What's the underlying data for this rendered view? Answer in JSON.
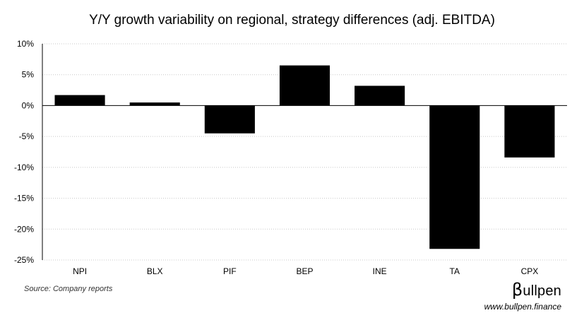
{
  "chart_data": {
    "type": "bar",
    "title": "Y/Y growth variability on regional, strategy differences (adj. EBITDA)",
    "categories": [
      "NPI",
      "BLX",
      "PIF",
      "BEP",
      "INE",
      "TA",
      "CPX"
    ],
    "values": [
      1.7,
      0.5,
      -4.5,
      6.5,
      3.2,
      -23.2,
      -8.4
    ],
    "value_unit": "%",
    "ylim": [
      -25,
      10
    ],
    "yticks": [
      10,
      5,
      0,
      -5,
      -10,
      -15,
      -20,
      -25
    ],
    "ytick_labels": [
      "10%",
      "5%",
      "0%",
      "-5%",
      "-10%",
      "-15%",
      "-20%",
      "-25%"
    ],
    "grid": "horizontal dotted",
    "legend": "none",
    "bar_color": "#000000"
  },
  "footer": {
    "source": "Source: Company reports",
    "brand_beta": "β",
    "brand_name": "ullpen",
    "url": "www.bullpen.finance"
  }
}
